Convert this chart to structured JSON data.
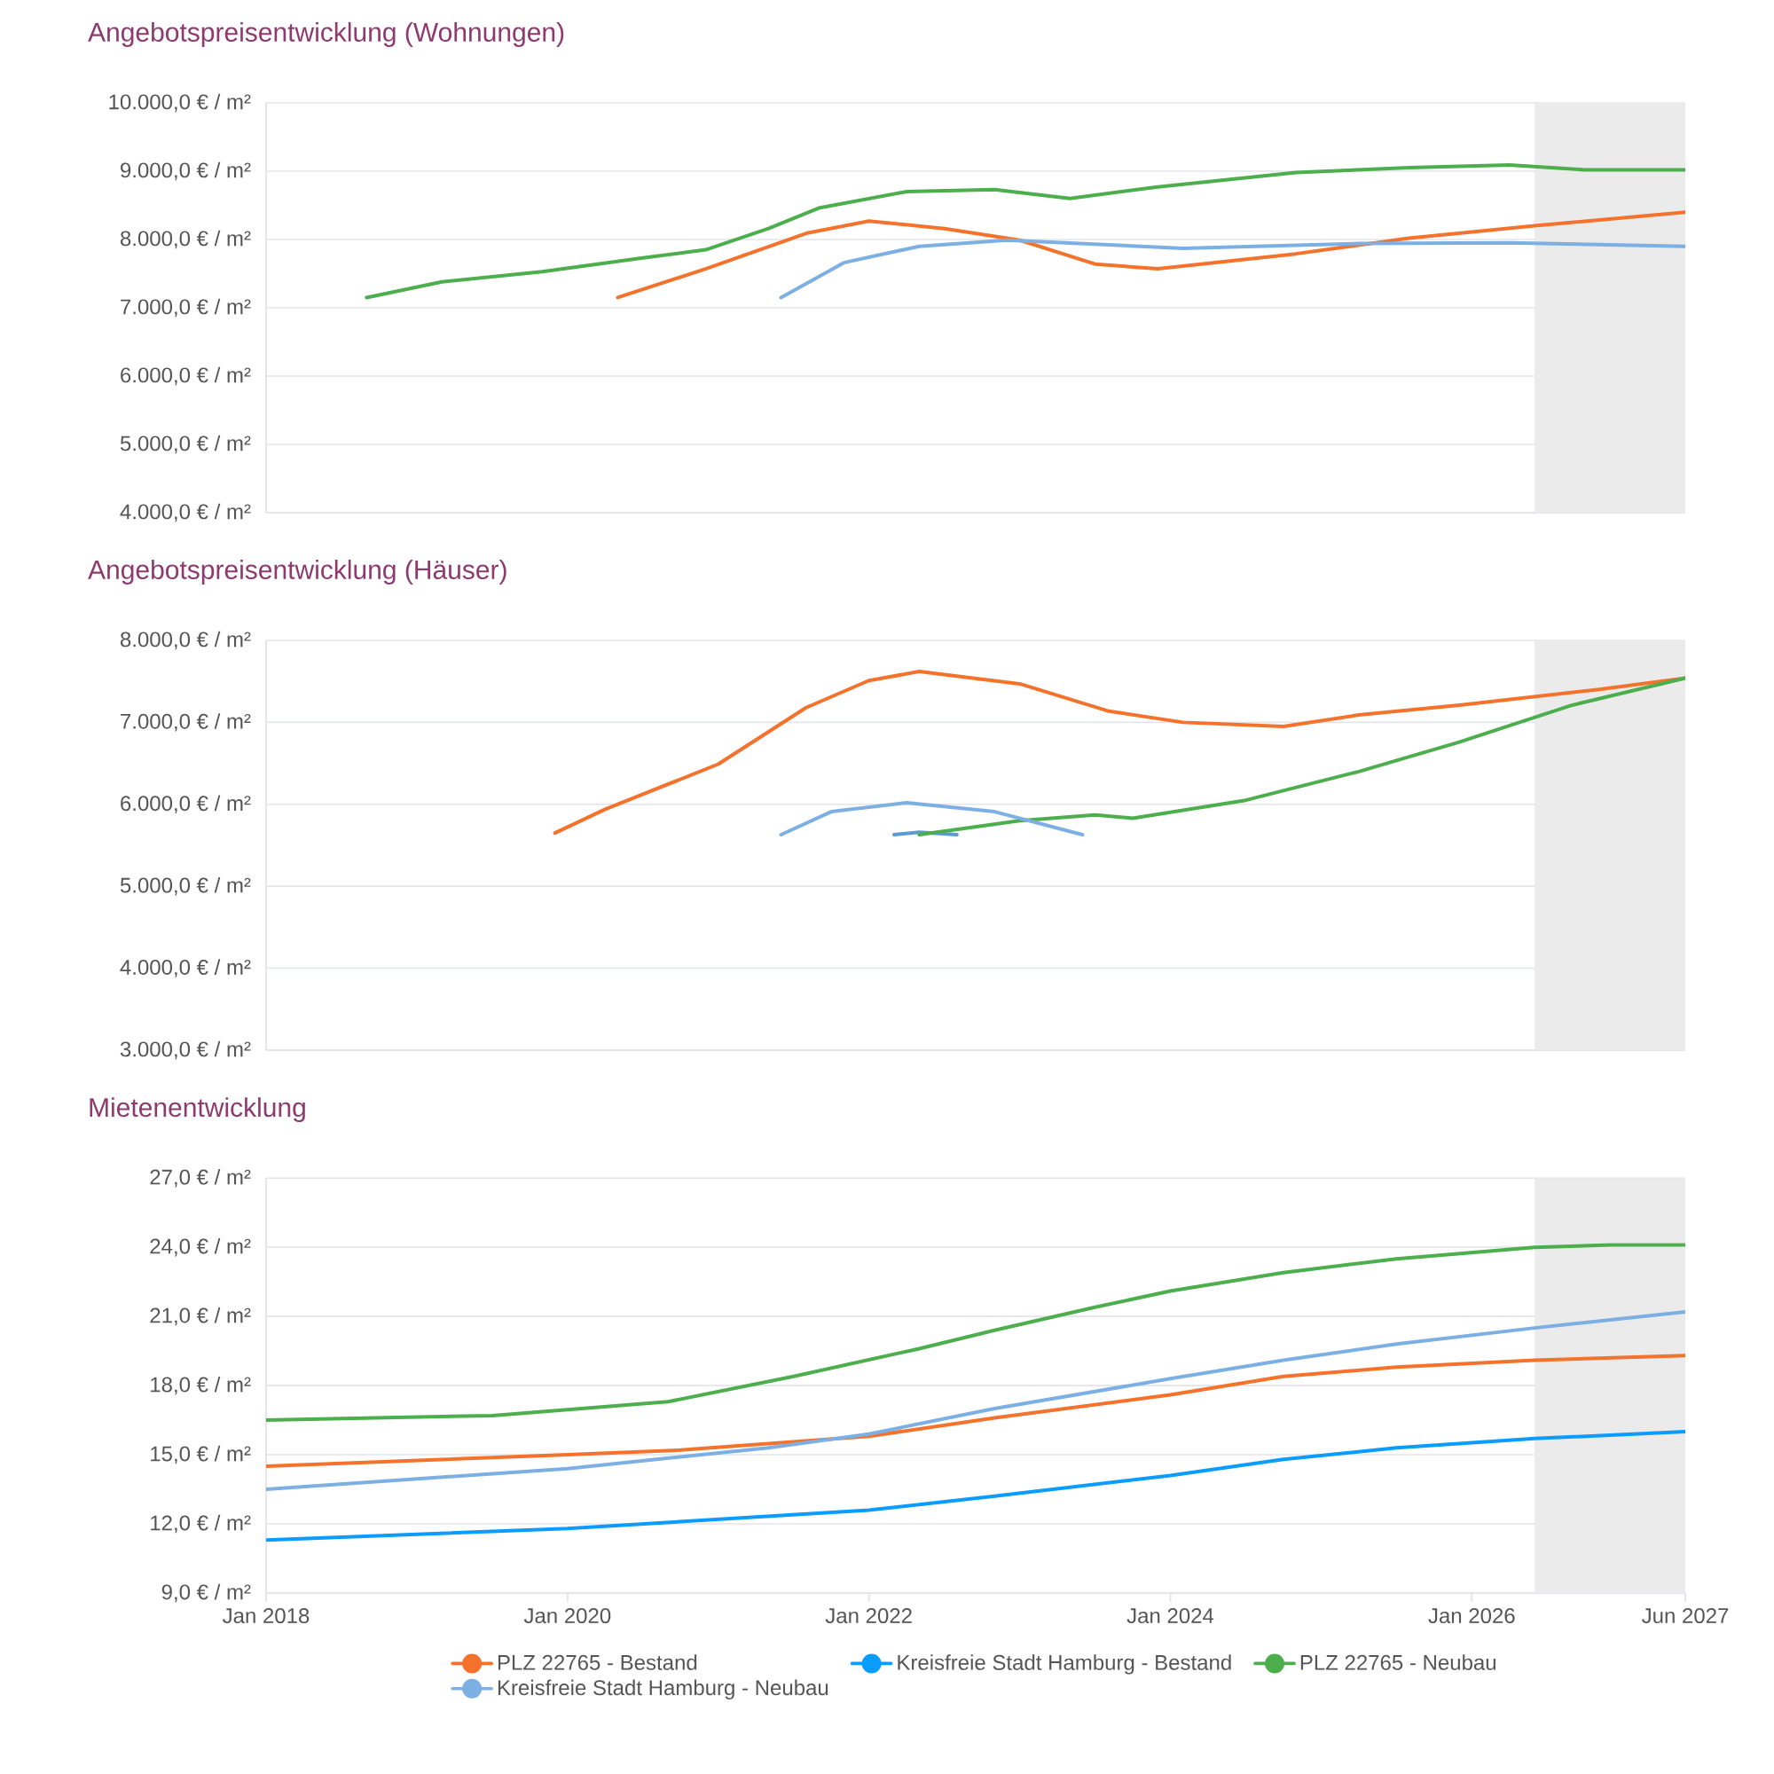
{
  "chart_data": [
    {
      "type": "line",
      "title": "Angebotspreisentwicklung (Wohnungen)",
      "xlim": [
        "2018-01",
        "2027-06"
      ],
      "ylim": [
        4000,
        10000
      ],
      "grid": "y",
      "tick_labels": "y",
      "yticks": [
        {
          "value": 4000,
          "label": "4.000,0 € / m²"
        },
        {
          "value": 5000,
          "label": "5.000,0 € / m²"
        },
        {
          "value": 6000,
          "label": "6.000,0 € / m²"
        },
        {
          "value": 7000,
          "label": "7.000,0 € / m²"
        },
        {
          "value": 8000,
          "label": "8.000,0 € / m²"
        },
        {
          "value": 9000,
          "label": "9.000,0 € / m²"
        },
        {
          "value": 10000,
          "label": "10.000,0 € / m²"
        }
      ],
      "bands": [
        {
          "axis": "x",
          "from": "2026-06",
          "to": "2027-06",
          "color": "#ebebeb"
        }
      ],
      "series": [
        {
          "color": "#f4722b",
          "x": [
            "2020-05",
            "2020-12",
            "2021-08",
            "2022-01",
            "2022-07",
            "2023-01",
            "2023-07",
            "2023-12",
            "2024-11",
            "2025-08",
            "2026-06",
            "2027-06"
          ],
          "values": [
            7150,
            7570,
            8090,
            8270,
            8160,
            7990,
            7640,
            7570,
            7790,
            8020,
            8200,
            8400
          ]
        },
        {
          "color": "#4cae4c",
          "x": [
            "2018-09",
            "2019-03",
            "2019-11",
            "2020-07",
            "2020-12",
            "2021-05",
            "2021-09",
            "2022-04",
            "2022-11",
            "2023-05",
            "2023-12",
            "2024-11",
            "2025-08",
            "2026-04",
            "2026-10",
            "2027-06"
          ],
          "values": [
            7150,
            7380,
            7530,
            7730,
            7850,
            8160,
            8460,
            8700,
            8730,
            8600,
            8770,
            8980,
            9050,
            9090,
            9020,
            9020
          ]
        },
        {
          "color": "#7cb0e4",
          "x": [
            "2021-06",
            "2021-11",
            "2022-05",
            "2022-12",
            "2024-02",
            "2025-04",
            "2026-04",
            "2027-06"
          ],
          "values": [
            7150,
            7660,
            7900,
            7990,
            7870,
            7940,
            7950,
            7900
          ]
        }
      ]
    },
    {
      "type": "line",
      "title": "Angebotspreisentwicklung (Häuser)",
      "xlim": [
        "2018-01",
        "2027-06"
      ],
      "ylim": [
        3000,
        8000
      ],
      "grid": "y",
      "tick_labels": "y",
      "yticks": [
        {
          "value": 3000,
          "label": "3.000,0 € / m²"
        },
        {
          "value": 4000,
          "label": "4.000,0 € / m²"
        },
        {
          "value": 5000,
          "label": "5.000,0 € / m²"
        },
        {
          "value": 6000,
          "label": "6.000,0 € / m²"
        },
        {
          "value": 7000,
          "label": "7.000,0 € / m²"
        },
        {
          "value": 8000,
          "label": "8.000,0 € / m²"
        }
      ],
      "bands": [
        {
          "axis": "x",
          "from": "2026-06",
          "to": "2027-06",
          "color": "#ebebeb"
        }
      ],
      "series": [
        {
          "color": "#f4722b",
          "x": [
            "2019-12",
            "2020-04",
            "2021-01",
            "2021-08",
            "2022-01",
            "2022-05",
            "2023-01",
            "2023-08",
            "2024-02",
            "2024-10",
            "2025-04",
            "2025-12",
            "2026-11",
            "2027-06"
          ],
          "values": [
            5650,
            5940,
            6490,
            7180,
            7510,
            7620,
            7470,
            7140,
            7000,
            6950,
            7090,
            7210,
            7400,
            7540
          ]
        },
        {
          "color": "#5b9bd5",
          "x": [
            "2022-03",
            "2022-05",
            "2022-08"
          ],
          "values": [
            5630,
            5660,
            5630
          ]
        },
        {
          "color": "#4cae4c",
          "x": [
            "2022-05",
            "2023-01",
            "2023-07",
            "2023-10",
            "2024-07",
            "2025-04",
            "2025-12",
            "2026-09",
            "2027-06"
          ],
          "values": [
            5630,
            5800,
            5870,
            5830,
            6050,
            6400,
            6760,
            7210,
            7540
          ]
        },
        {
          "color": "#7cb0e4",
          "x": [
            "2021-06",
            "2021-10",
            "2022-04",
            "2022-11",
            "2023-06"
          ],
          "values": [
            5630,
            5910,
            6020,
            5910,
            5630
          ]
        }
      ]
    },
    {
      "type": "line",
      "title": "Mietenentwicklung",
      "xlim": [
        "2018-01",
        "2027-06"
      ],
      "ylim": [
        9,
        27
      ],
      "grid": "y",
      "legend": "bottom",
      "xticks": [
        {
          "value": "2018-01",
          "label": "Jan 2018"
        },
        {
          "value": "2020-01",
          "label": "Jan 2020"
        },
        {
          "value": "2022-01",
          "label": "Jan 2022"
        },
        {
          "value": "2024-01",
          "label": "Jan 2024"
        },
        {
          "value": "2026-01",
          "label": "Jan 2026"
        },
        {
          "value": "2027-06",
          "label": "Jun 2027"
        }
      ],
      "yticks": [
        {
          "value": 9,
          "label": "9,0 € / m²"
        },
        {
          "value": 12,
          "label": "12,0 € / m²"
        },
        {
          "value": 15,
          "label": "15,0 € / m²"
        },
        {
          "value": 18,
          "label": "18,0 € / m²"
        },
        {
          "value": 21,
          "label": "21,0 € / m²"
        },
        {
          "value": 24,
          "label": "24,0 € / m²"
        },
        {
          "value": 27,
          "label": "27,0 € / m²"
        }
      ],
      "bands": [
        {
          "axis": "x",
          "from": "2026-06",
          "to": "2027-06",
          "color": "#ebebeb"
        }
      ],
      "series": [
        {
          "name": "PLZ 22765 - Bestand",
          "color": "#f4722b",
          "x": [
            "2018-01",
            "2020-01",
            "2020-10",
            "2022-01",
            "2022-11",
            "2024-01",
            "2024-10",
            "2025-07",
            "2026-06",
            "2027-06"
          ],
          "values": [
            14.5,
            15.0,
            15.2,
            15.8,
            16.6,
            17.6,
            18.4,
            18.8,
            19.1,
            19.3
          ]
        },
        {
          "name": "Kreisfreie Stadt Hamburg - Bestand",
          "color": "#0a9cff",
          "x": [
            "2018-01",
            "2020-01",
            "2022-01",
            "2022-11",
            "2024-01",
            "2024-10",
            "2025-07",
            "2026-06",
            "2027-06"
          ],
          "values": [
            11.3,
            11.8,
            12.6,
            13.2,
            14.1,
            14.8,
            15.3,
            15.7,
            16.0
          ]
        },
        {
          "name": "PLZ 22765 - Neubau",
          "color": "#4cae4c",
          "x": [
            "2018-01",
            "2019-07",
            "2020-09",
            "2021-07",
            "2022-05",
            "2022-11",
            "2023-07",
            "2024-01",
            "2024-10",
            "2025-07",
            "2026-06",
            "2026-12",
            "2027-06"
          ],
          "values": [
            16.5,
            16.7,
            17.3,
            18.4,
            19.6,
            20.4,
            21.4,
            22.1,
            22.9,
            23.5,
            24.0,
            24.1,
            24.1
          ]
        },
        {
          "name": "Kreisfreie Stadt Hamburg - Neubau",
          "color": "#7cb0e4",
          "x": [
            "2018-01",
            "2020-01",
            "2021-05",
            "2022-01",
            "2022-11",
            "2024-01",
            "2024-10",
            "2025-07",
            "2026-06",
            "2027-06"
          ],
          "values": [
            13.5,
            14.4,
            15.3,
            15.9,
            17.0,
            18.3,
            19.1,
            19.8,
            20.5,
            21.2
          ]
        }
      ]
    }
  ]
}
